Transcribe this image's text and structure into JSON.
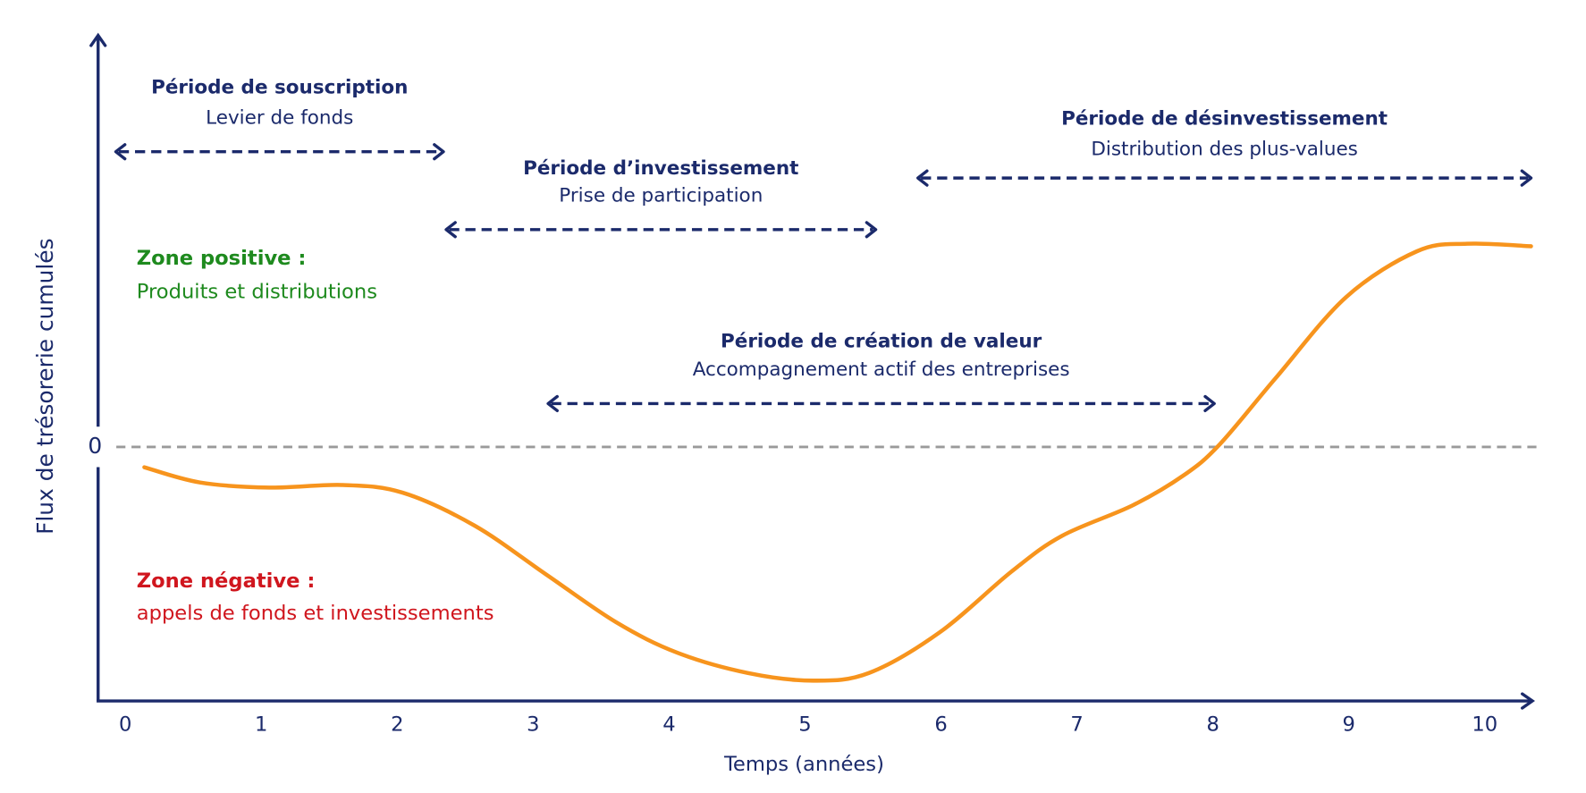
{
  "chart_data": {
    "type": "line",
    "x_label": "Temps (années)",
    "y_label": "Flux de trésorerie cumulés",
    "xlim": [
      -0.2,
      10.35
    ],
    "xticks": [
      0,
      1,
      2,
      3,
      4,
      5,
      6,
      7,
      8,
      9,
      10
    ],
    "ylim": [
      -1,
      1.62
    ],
    "yticks": [
      0
    ],
    "zero_line": true,
    "series": [
      {
        "color": "#f7941d",
        "x": [
          0.14,
          0.55,
          1.06,
          1.6,
          2.04,
          2.57,
          3.09,
          3.61,
          4.06,
          4.58,
          5.06,
          5.47,
          5.99,
          6.52,
          6.89,
          7.41,
          7.79,
          8.05,
          8.46,
          8.98,
          9.5,
          9.87,
          10.34
        ],
        "values": [
          -0.08,
          -0.14,
          -0.16,
          -0.15,
          -0.18,
          -0.31,
          -0.5,
          -0.69,
          -0.81,
          -0.89,
          -0.92,
          -0.89,
          -0.73,
          -0.49,
          -0.35,
          -0.23,
          -0.11,
          0.01,
          0.27,
          0.59,
          0.77,
          0.8,
          0.79
        ]
      }
    ],
    "periods": [
      {
        "title": "Période de souscription",
        "subtitle": "Levier de fonds",
        "span": [
          -0.07,
          2.34
        ]
      },
      {
        "title": "Période d’investissement",
        "subtitle": "Prise de participation",
        "span": [
          2.36,
          5.52
        ]
      },
      {
        "title": "Période de désinvestissement",
        "subtitle": "Distribution des plus-values",
        "span": [
          5.83,
          10.34
        ]
      },
      {
        "title": "Période de création de valeur",
        "subtitle": "Accompagnement actif des entreprises",
        "span": [
          3.11,
          8.01
        ]
      }
    ],
    "zones": [
      {
        "title": "Zone positive :",
        "subtitle": "Produits et distributions",
        "color": "#1e8a1e"
      },
      {
        "title": "Zone négative :",
        "subtitle": "appels de fonds et investissements",
        "color": "#d0161e"
      }
    ]
  }
}
